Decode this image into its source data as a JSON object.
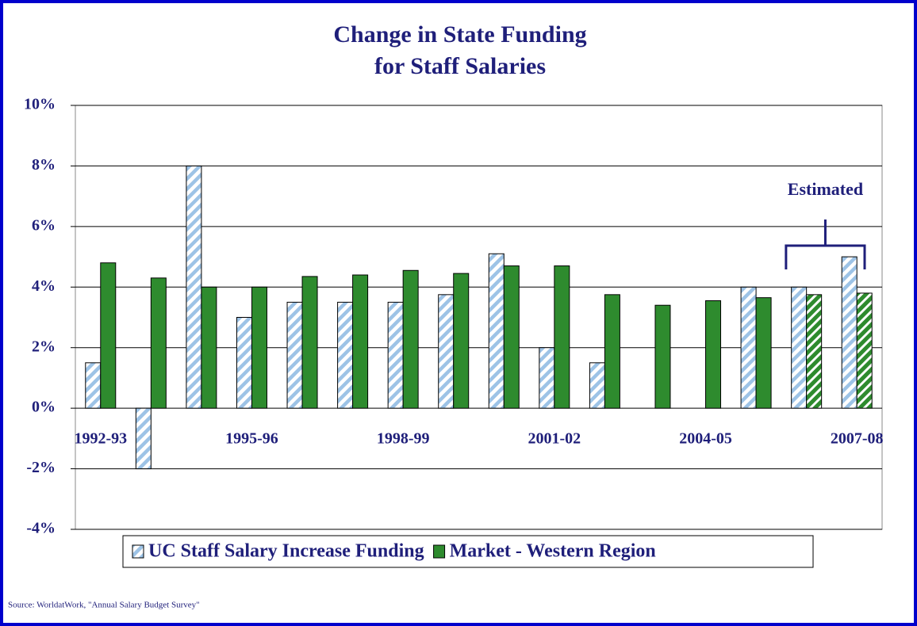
{
  "chart_data": {
    "type": "bar",
    "title": [
      "Change in State Funding",
      "for Staff Salaries"
    ],
    "categories": [
      "1992-93",
      null,
      null,
      "1995-96",
      null,
      null,
      "1998-99",
      null,
      null,
      "2001-02",
      null,
      null,
      "2004-05",
      null,
      null,
      "2007-08"
    ],
    "series": [
      {
        "name": "UC Staff Salary Increase Funding",
        "color": "#9dc3e6",
        "hatched": true,
        "values": [
          1.5,
          -2,
          8,
          3,
          3.5,
          3.5,
          3.5,
          3.75,
          5.1,
          2,
          1.5,
          0,
          0,
          4,
          4,
          5
        ]
      },
      {
        "name": "Market - Western Region",
        "color": "#2e8b2e",
        "hatched": false,
        "values": [
          4.8,
          4.3,
          4.0,
          4.0,
          4.35,
          4.4,
          4.55,
          4.45,
          4.7,
          4.7,
          3.75,
          3.4,
          3.55,
          3.65,
          3.75,
          3.8
        ]
      }
    ],
    "ylim": [
      -4,
      10
    ],
    "yticks": [
      {
        "value": -4,
        "label": "-4%"
      },
      {
        "value": -2,
        "label": "-2%"
      },
      {
        "value": 0,
        "label": "0%"
      },
      {
        "value": 2,
        "label": "2%"
      },
      {
        "value": 4,
        "label": "4%"
      },
      {
        "value": 6,
        "label": "6%"
      },
      {
        "value": 8,
        "label": "8%"
      },
      {
        "value": 10,
        "label": "10%"
      }
    ],
    "grid": true,
    "legend": "bottom",
    "annotation": {
      "label": "Estimated",
      "from": 14,
      "to": 15
    },
    "source": "Source: WorldatWork, \"Annual Salary Budget Survey\""
  }
}
